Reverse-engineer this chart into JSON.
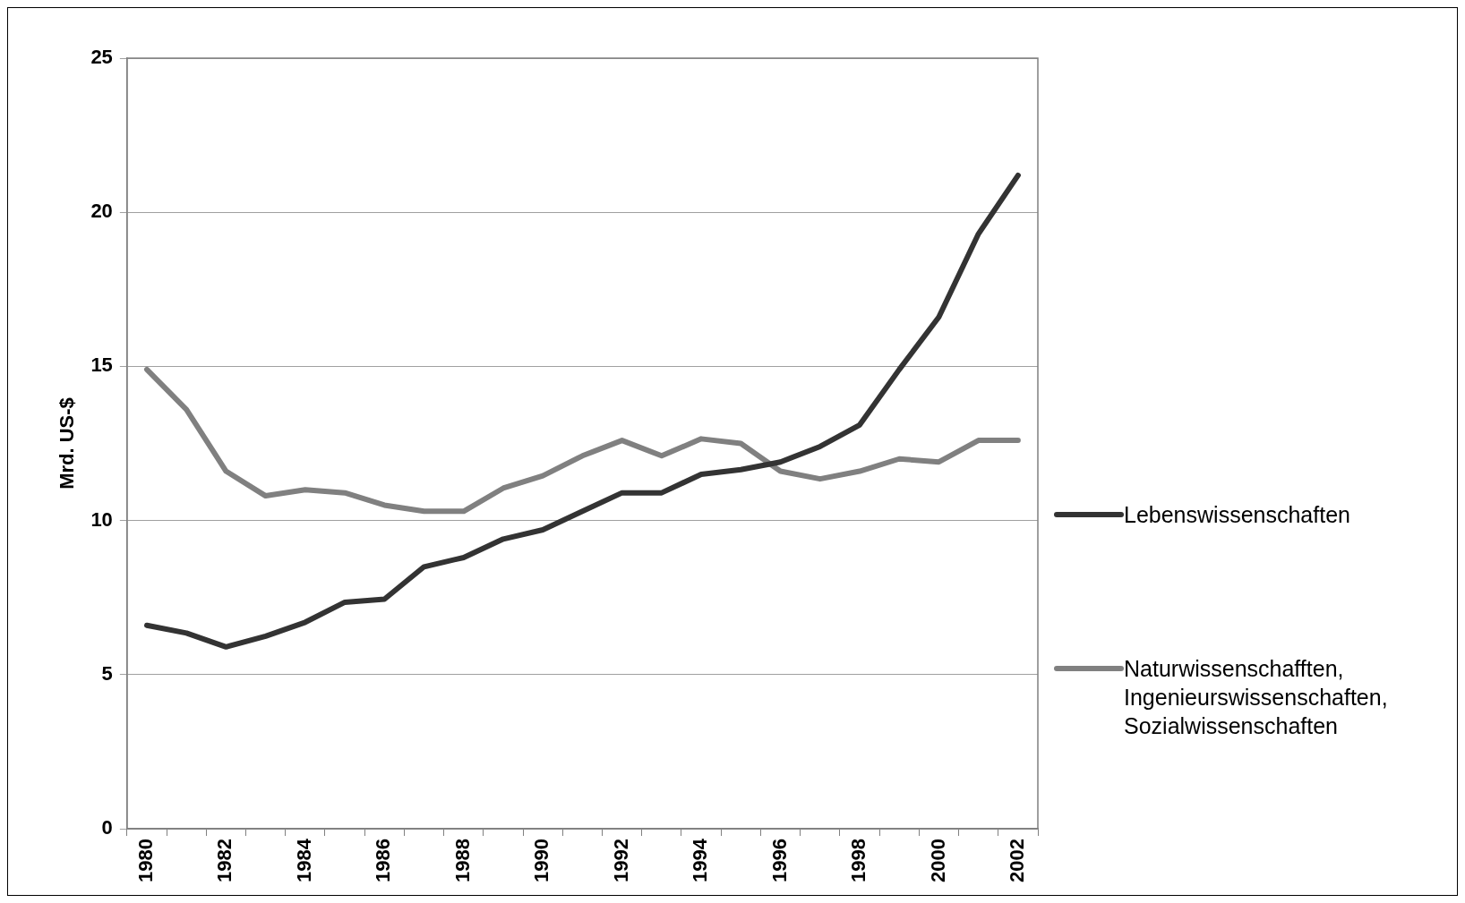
{
  "chart_data": {
    "type": "line",
    "ylabel": "Mrd. US-$",
    "categories": [
      "1980",
      null,
      "1982",
      null,
      "1984",
      null,
      "1986",
      null,
      "1988",
      null,
      "1990",
      null,
      "1992",
      null,
      "1994",
      null,
      "1996",
      null,
      "1998",
      null,
      "2000",
      null,
      "2002"
    ],
    "series": [
      {
        "name": "Lebenswissenschaften",
        "color": "#333333",
        "values": [
          6.6,
          6.35,
          5.9,
          6.25,
          6.7,
          7.35,
          7.45,
          8.5,
          8.8,
          9.4,
          9.7,
          10.3,
          10.9,
          10.9,
          11.5,
          11.65,
          11.9,
          12.4,
          13.1,
          14.9,
          16.6,
          19.3,
          21.2
        ]
      },
      {
        "name": "Naturwissenschafften, Ingenieurswissenschaften, Sozialwissenschaften",
        "color": "#808080",
        "values": [
          14.9,
          13.6,
          11.6,
          10.8,
          11.0,
          10.9,
          10.5,
          10.3,
          10.3,
          11.05,
          11.45,
          12.1,
          12.6,
          12.1,
          12.65,
          12.5,
          11.6,
          11.35,
          11.6,
          12.0,
          11.9,
          12.6,
          12.6
        ]
      }
    ],
    "ylim": [
      0,
      25
    ],
    "yticks": [
      0,
      5,
      10,
      15,
      20,
      25
    ],
    "grid": "y",
    "legend": "right",
    "marker": "none",
    "line_style": "solid"
  }
}
